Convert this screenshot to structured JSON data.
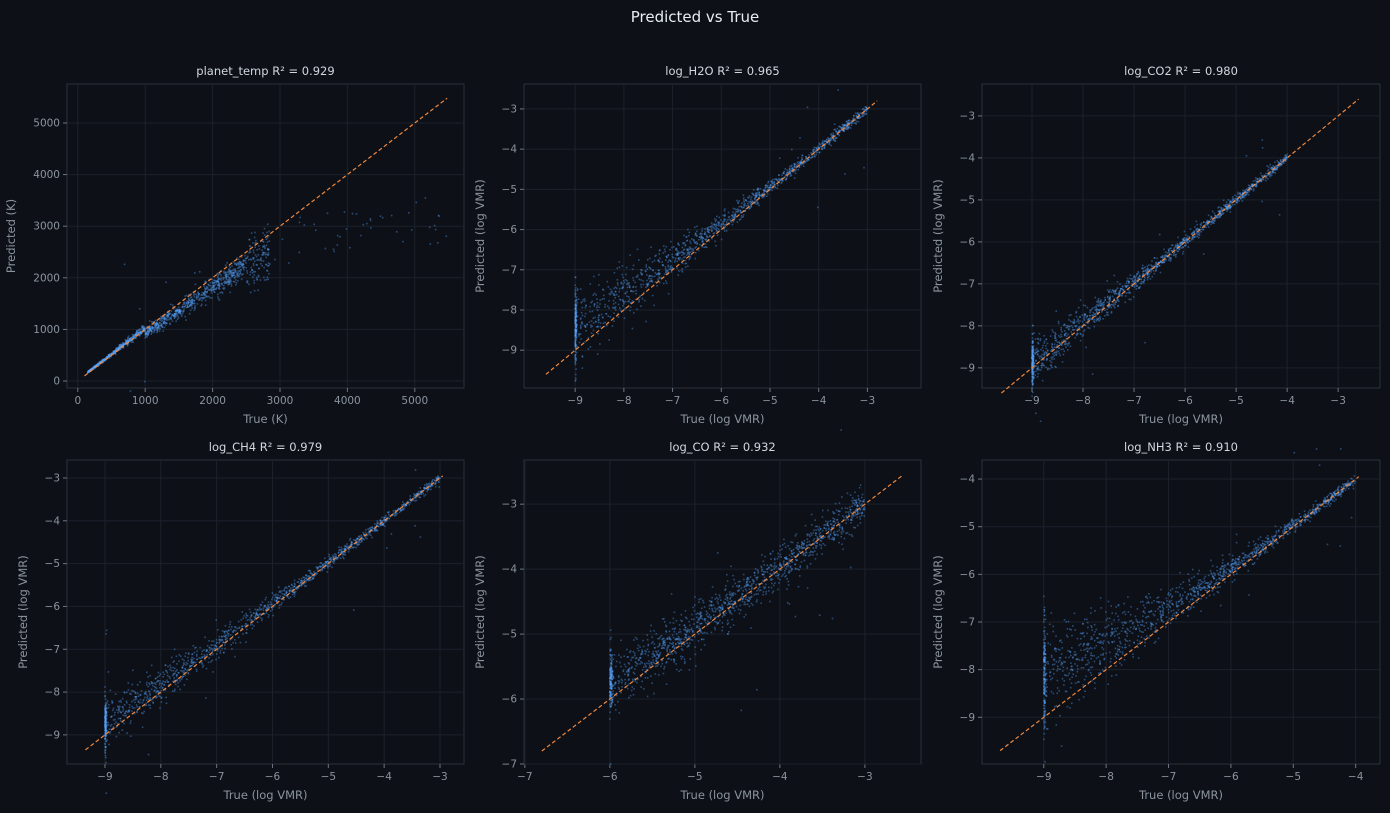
{
  "figure_title": "Predicted vs True",
  "colors": {
    "background": "#0d1017",
    "points": "#58a6ff",
    "diagonal": "#f0883e",
    "grid": "#1c212b",
    "spine": "#2a303b"
  },
  "chart_data": [
    {
      "type": "scatter",
      "title": "planet_temp   R² = 0.929",
      "target": "planet_temp",
      "r2": 0.929,
      "xlabel": "True  (K)",
      "ylabel": "Predicted  (K)",
      "xlim": [
        -160,
        5730
      ],
      "ylim": [
        -135,
        5755
      ],
      "xticks": [
        0,
        1000,
        2000,
        3000,
        4000,
        5000
      ],
      "yticks": [
        0,
        1000,
        2000,
        3000,
        4000,
        5000
      ],
      "diagonal": [
        100,
        5480
      ],
      "true_range": [
        150,
        5480
      ],
      "grid": true,
      "trend": "predictions follow diagonal up to ~2500 K, then saturate near 3000 K"
    },
    {
      "type": "scatter",
      "title": "log_H2O   R² = 0.965",
      "target": "log_H2O",
      "r2": 0.965,
      "xlabel": "True  (log VMR)",
      "ylabel": "Predicted  (log VMR)",
      "xlim": [
        -10.05,
        -1.9
      ],
      "ylim": [
        -9.94,
        -2.38
      ],
      "xticks": [
        -9,
        -8,
        -7,
        -6,
        -5,
        -4,
        -3
      ],
      "yticks": [
        -9,
        -8,
        -7,
        -6,
        -5,
        -4,
        -3
      ],
      "diagonal": [
        -9.6,
        -2.8
      ],
      "true_range": [
        -9,
        -3
      ],
      "grid": true,
      "spread_low": 0.45,
      "bias_low": 0.6,
      "spread_high": 0.06
    },
    {
      "type": "scatter",
      "title": "log_CO2   R² = 0.980",
      "target": "log_CO2",
      "r2": 0.98,
      "xlabel": "True  (log VMR)",
      "ylabel": "Predicted  (log VMR)",
      "xlim": [
        -9.98,
        -2.18
      ],
      "ylim": [
        -9.48,
        -2.24
      ],
      "xticks": [
        -9,
        -8,
        -7,
        -6,
        -5,
        -4,
        -3
      ],
      "yticks": [
        -9,
        -8,
        -7,
        -6,
        -5,
        -4,
        -3
      ],
      "diagonal": [
        -9.6,
        -2.6
      ],
      "true_range": [
        -9,
        -4
      ],
      "grid": true,
      "spread_low": 0.28,
      "bias_low": 0.1,
      "spread_high": 0.05
    },
    {
      "type": "scatter",
      "title": "log_CH4   R² = 0.979",
      "target": "log_CH4",
      "r2": 0.979,
      "xlabel": "True  (log VMR)",
      "ylabel": "Predicted  (log VMR)",
      "xlim": [
        -9.68,
        -2.57
      ],
      "ylim": [
        -9.68,
        -2.58
      ],
      "xticks": [
        -9,
        -8,
        -7,
        -6,
        -5,
        -4,
        -3
      ],
      "yticks": [
        -9,
        -8,
        -7,
        -6,
        -5,
        -4,
        -3
      ],
      "diagonal": [
        -9.35,
        -2.95
      ],
      "true_range": [
        -9,
        -3
      ],
      "grid": true,
      "spread_low": 0.28,
      "bias_low": 0.25,
      "spread_high": 0.05
    },
    {
      "type": "scatter",
      "title": "log_CO   R² = 0.932",
      "target": "log_CO",
      "r2": 0.932,
      "xlabel": "True  (log VMR)",
      "ylabel": "Predicted  (log VMR)",
      "xlim": [
        -7.01,
        -2.34
      ],
      "ylim": [
        -7.0,
        -2.32
      ],
      "xticks": [
        -7,
        -6,
        -5,
        -4,
        -3
      ],
      "yticks": [
        -7,
        -6,
        -5,
        -4,
        -3
      ],
      "diagonal": [
        -6.8,
        -2.55
      ],
      "true_range": [
        -6,
        -3
      ],
      "grid": true,
      "spread_low": 0.22,
      "bias_low": 0.25,
      "spread_high": 0.15
    },
    {
      "type": "scatter",
      "title": "log_NH3   R² = 0.910",
      "target": "log_NH3",
      "r2": 0.91,
      "xlabel": "True  (log VMR)",
      "ylabel": "Predicted  (log VMR)",
      "xlim": [
        -9.99,
        -3.61
      ],
      "ylim": [
        -9.98,
        -3.6
      ],
      "xticks": [
        -9,
        -8,
        -7,
        -6,
        -5,
        -4
      ],
      "yticks": [
        -9,
        -8,
        -7,
        -6,
        -5,
        -4
      ],
      "diagonal": [
        -9.7,
        -3.95
      ],
      "true_range": [
        -9,
        -4
      ],
      "grid": true,
      "spread_low": 0.6,
      "bias_low": 0.9,
      "spread_high": 0.05
    }
  ]
}
